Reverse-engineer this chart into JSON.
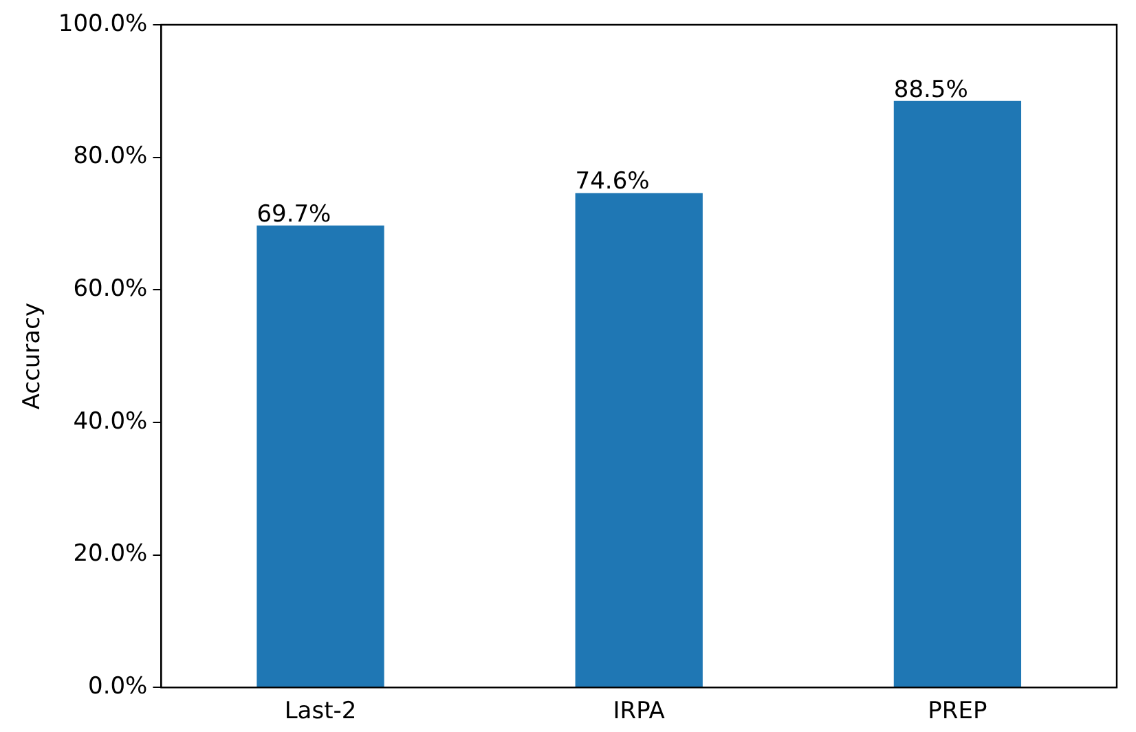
{
  "chart_data": {
    "type": "bar",
    "ylabel": "Accuracy",
    "categories": [
      "Last-2",
      "IRPA",
      "PREP"
    ],
    "values": [
      69.7,
      74.6,
      88.5
    ],
    "value_labels": [
      "69.7%",
      "74.6%",
      "88.5%"
    ],
    "color": "#1f77b4",
    "ylim": [
      0,
      100
    ],
    "yticks": [
      {
        "value": 0,
        "label": "0.0%"
      },
      {
        "value": 20,
        "label": "20.0%"
      },
      {
        "value": 40,
        "label": "40.0%"
      },
      {
        "value": 60,
        "label": "60.0%"
      },
      {
        "value": 80,
        "label": "80.0%"
      },
      {
        "value": 100,
        "label": "100.0%"
      }
    ],
    "grid": false,
    "legend": false
  }
}
